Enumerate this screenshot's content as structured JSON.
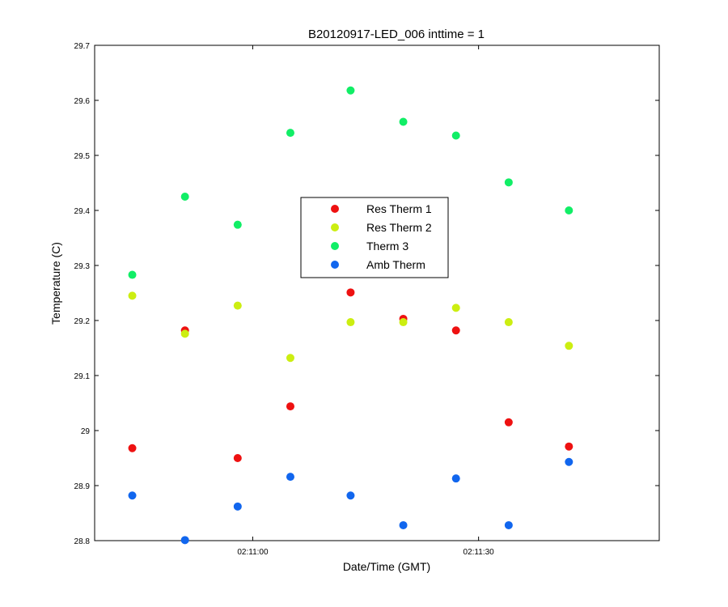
{
  "chart_data": {
    "type": "scatter",
    "title": "B20120917-LED_006 inttime = 1",
    "xlabel": "Date/Time (GMT)",
    "ylabel": "Temperature (C)",
    "x_unit": "time",
    "xlim": [
      "02:10:39",
      "02:11:54"
    ],
    "ylim": [
      28.8,
      29.7
    ],
    "x_ticks": [
      "02:11:00",
      "02:11:30"
    ],
    "y_ticks": [
      "28.8",
      "28.9",
      "29",
      "29.1",
      "29.2",
      "29.3",
      "29.4",
      "29.5",
      "29.6",
      "29.7"
    ],
    "grid": false,
    "legend_position": "center",
    "x": [
      "02:10:44",
      "02:10:51",
      "02:10:58",
      "02:11:05",
      "02:11:13",
      "02:11:20",
      "02:11:27",
      "02:11:34",
      "02:11:42"
    ],
    "series": [
      {
        "name": "Res Therm 1",
        "color": "#ee1111",
        "values": [
          28.968,
          29.182,
          28.95,
          29.044,
          29.251,
          29.203,
          29.182,
          29.015,
          28.971
        ]
      },
      {
        "name": "Res Therm 2",
        "color": "#ccee11",
        "values": [
          29.245,
          29.176,
          29.227,
          29.132,
          29.197,
          29.197,
          29.223,
          29.197,
          29.154
        ]
      },
      {
        "name": "Therm 3",
        "color": "#11ee66",
        "values": [
          29.283,
          29.425,
          29.374,
          29.541,
          29.618,
          29.561,
          29.536,
          29.451,
          29.4
        ]
      },
      {
        "name": "Amb Therm",
        "color": "#1166ee",
        "values": [
          28.882,
          28.801,
          28.862,
          28.916,
          28.882,
          28.828,
          28.913,
          28.828,
          28.943
        ]
      }
    ]
  }
}
